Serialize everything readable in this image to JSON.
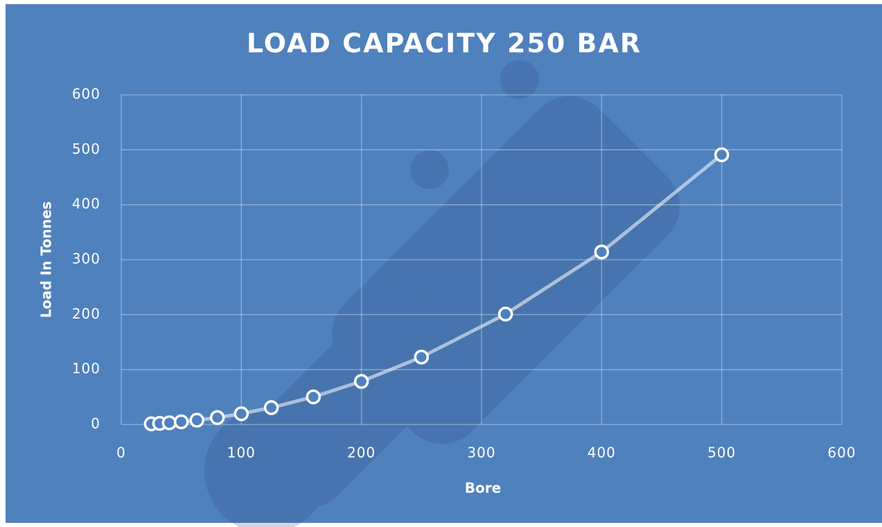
{
  "chart_data": {
    "type": "scatter",
    "title": "LOAD CAPACITY 250 BAR",
    "x_label": "Bore",
    "y_label": "Load In Tonnes",
    "x": [
      25,
      32,
      40,
      50,
      63,
      80,
      100,
      125,
      160,
      200,
      250,
      320,
      400,
      500
    ],
    "series": [
      {
        "color": "#ffffff",
        "values": [
          1.2,
          2,
          3.1,
          4.9,
          7.8,
          12.6,
          19.6,
          30.7,
          50.3,
          78.5,
          122.7,
          201,
          314,
          491
        ]
      }
    ],
    "xlim": [
      0,
      600
    ],
    "xticks": [
      0,
      100,
      200,
      300,
      400,
      500,
      600
    ],
    "ylim": [
      0,
      600
    ],
    "yticks": [
      0,
      100,
      200,
      300,
      400,
      500,
      600
    ],
    "grid": true
  }
}
